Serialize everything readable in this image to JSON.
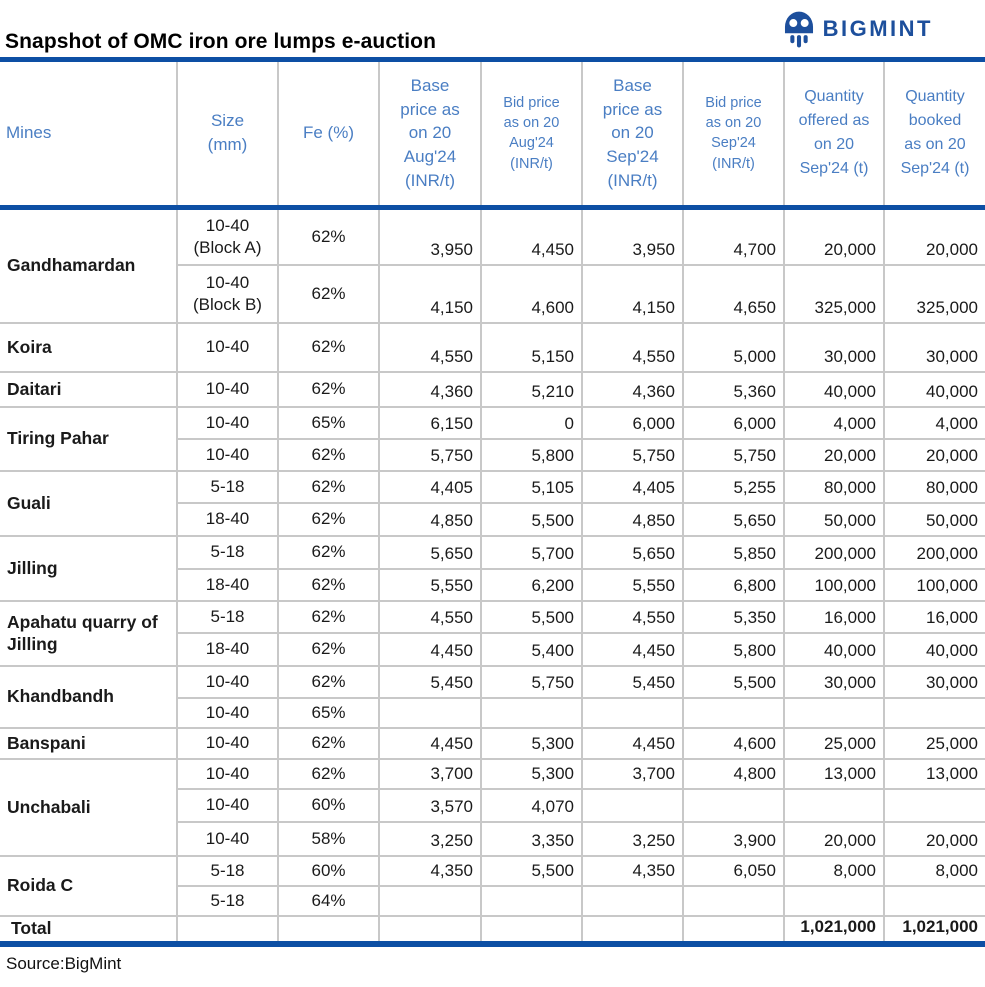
{
  "title": "Snapshot of OMC iron ore lumps e-auction",
  "logo": {
    "text": "BIGMINT",
    "icon": "bigmint-mascot-icon"
  },
  "source": "Source:BigMint",
  "colors": {
    "header_text_blue": "#4a7ec3",
    "accent_line_navy": "#0d4fa4",
    "logo_blue": "#1d4f9c",
    "grid_line_gray": "#c8c8c8",
    "body_text": "#1a1a1a"
  },
  "chart_data": {
    "type": "table",
    "title": "Snapshot of OMC iron ore lumps e-auction",
    "columns": [
      "Mines",
      "Size\n(mm)",
      "Fe (%)",
      "Base\nprice as\non 20\nAug'24\n(INR/t)",
      "Bid price\nas on 20\nAug'24\n(INR/t)",
      "Base\nprice as\non 20\nSep'24\n(INR/t)",
      "Bid price\nas on 20\nSep'24\n(INR/t)",
      "Quantity\noffered as\non 20\nSep'24 (t)",
      "Quantity\nbooked\nas on 20\nSep'24 (t)"
    ],
    "rows": [
      [
        "Gandhamardan",
        "10-40\n(Block A)",
        "62%",
        "3,950",
        "4,450",
        "3,950",
        "4,700",
        "20,000",
        "20,000"
      ],
      [
        "",
        "10-40\n(Block B)",
        "62%",
        "4,150",
        "4,600",
        "4,150",
        "4,650",
        "325,000",
        "325,000"
      ],
      [
        "Koira",
        "10-40",
        "62%",
        "4,550",
        "5,150",
        "4,550",
        "5,000",
        "30,000",
        "30,000"
      ],
      [
        "Daitari",
        "10-40",
        "62%",
        "4,360",
        "5,210",
        "4,360",
        "5,360",
        "40,000",
        "40,000"
      ],
      [
        "Tiring Pahar",
        "10-40",
        "65%",
        "6,150",
        "0",
        "6,000",
        "6,000",
        "4,000",
        "4,000"
      ],
      [
        "",
        "10-40",
        "62%",
        "5,750",
        "5,800",
        "5,750",
        "5,750",
        "20,000",
        "20,000"
      ],
      [
        "Guali",
        "5-18",
        "62%",
        "4,405",
        "5,105",
        "4,405",
        "5,255",
        "80,000",
        "80,000"
      ],
      [
        "",
        "18-40",
        "62%",
        "4,850",
        "5,500",
        "4,850",
        "5,650",
        "50,000",
        "50,000"
      ],
      [
        "Jilling",
        "5-18",
        "62%",
        "5,650",
        "5,700",
        "5,650",
        "5,850",
        "200,000",
        "200,000"
      ],
      [
        "",
        "18-40",
        "62%",
        "5,550",
        "6,200",
        "5,550",
        "6,800",
        "100,000",
        "100,000"
      ],
      [
        "Apahatu quarry of Jilling",
        "5-18",
        "62%",
        "4,550",
        "5,500",
        "4,550",
        "5,350",
        "16,000",
        "16,000"
      ],
      [
        "",
        "18-40",
        "62%",
        "4,450",
        "5,400",
        "4,450",
        "5,800",
        "40,000",
        "40,000"
      ],
      [
        "Khandbandh",
        "10-40",
        "62%",
        "5,450",
        "5,750",
        "5,450",
        "5,500",
        "30,000",
        "30,000"
      ],
      [
        "",
        "10-40",
        "65%",
        "",
        "",
        "",
        "",
        "",
        ""
      ],
      [
        "Banspani",
        "10-40",
        "62%",
        "4,450",
        "5,300",
        "4,450",
        "4,600",
        "25,000",
        "25,000"
      ],
      [
        "Unchabali",
        "10-40",
        "62%",
        "3,700",
        "5,300",
        "3,700",
        "4,800",
        "13,000",
        "13,000"
      ],
      [
        "",
        "10-40",
        "60%",
        "3,570",
        "4,070",
        "",
        "",
        "",
        ""
      ],
      [
        "",
        "10-40",
        "58%",
        "3,250",
        "3,350",
        "3,250",
        "3,900",
        "20,000",
        "20,000"
      ],
      [
        "Roida C",
        "5-18",
        "60%",
        "4,350",
        "5,500",
        "4,350",
        "6,050",
        "8,000",
        "8,000"
      ],
      [
        "",
        "5-18",
        "64%",
        "",
        "",
        "",
        "",
        "",
        ""
      ]
    ],
    "total_row": [
      "Total",
      "",
      "",
      "",
      "",
      "",
      "",
      "1,021,000",
      "1,021,000"
    ],
    "source": "Source:BigMint"
  }
}
